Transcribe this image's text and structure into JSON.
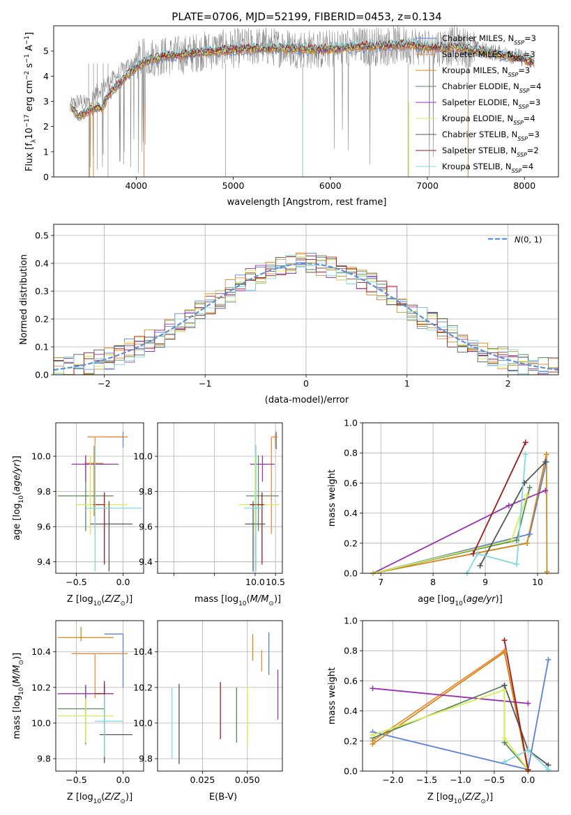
{
  "figure_title": "PLATE=0706, MJD=52199, FIBERID=0453, z=0.134",
  "colors": {
    "Chabrier MILES": "#5b7fdc",
    "Salpeter MILES": "#ef8a3a",
    "Kroupa MILES": "#d08a1a",
    "Chabrier ELODIE": "#5a8a5a",
    "Salpeter ELODIE": "#9a30b0",
    "Kroupa ELODIE": "#d8ee50",
    "Chabrier STELIB": "#555555",
    "Salpeter STELIB": "#a01818",
    "Kroupa STELIB": "#7ed8e0",
    "data": "#888888",
    "normal": "#5b8fd8",
    "grid": "#b0b0b0"
  },
  "chart_data": [
    {
      "id": "spectrum",
      "type": "line",
      "xlabel": "wavelength [Angstrom, rest frame]",
      "ylabel": "Flux [f_λ 10^-17 erg cm^-2 s^-1 A^-1]",
      "xlim": [
        3150,
        8350
      ],
      "ylim": [
        0,
        6
      ],
      "xticks": [
        4000,
        5000,
        6000,
        7000,
        8000
      ],
      "yticks": [
        0,
        1,
        2,
        3,
        4,
        5
      ],
      "grid": false,
      "legend_position": "right",
      "data_curve": {
        "x": [
          3320,
          3400,
          3500,
          3600,
          3700,
          3800,
          3900,
          4000,
          4100,
          4300,
          4500,
          4700,
          5000,
          5300,
          5600,
          5900,
          6200,
          6500,
          6800,
          7000,
          7300,
          7600,
          7900,
          8100
        ],
        "y": [
          2.8,
          3.0,
          2.9,
          3.4,
          3.7,
          4.0,
          4.4,
          4.6,
          4.75,
          4.8,
          4.85,
          5.0,
          5.1,
          5.2,
          5.1,
          5.05,
          5.15,
          5.2,
          5.25,
          5.15,
          5.2,
          5.0,
          4.8,
          4.6
        ]
      },
      "model_curve": {
        "x": [
          3320,
          3400,
          3500,
          3550,
          3600,
          3650,
          3700,
          3800,
          3900,
          4000,
          4100,
          4300,
          4500,
          4700,
          5000,
          5300,
          5600,
          5900,
          6200,
          6500,
          6800,
          7000,
          7300,
          7600,
          7900,
          8100
        ],
        "y": [
          2.8,
          2.4,
          2.6,
          2.7,
          2.8,
          2.7,
          3.2,
          3.6,
          4.0,
          4.35,
          4.6,
          4.8,
          4.85,
          4.95,
          5.05,
          5.1,
          5.1,
          5.05,
          5.15,
          5.2,
          5.25,
          5.15,
          5.15,
          4.95,
          4.75,
          4.55
        ]
      },
      "series": [
        {
          "name": "Chabrier MILES, N_SSP=3"
        },
        {
          "name": "Salpeter MILES, N_SSP=3"
        },
        {
          "name": "Kroupa MILES, N_SSP=3"
        },
        {
          "name": "Chabrier ELODIE, N_SSP=4"
        },
        {
          "name": "Salpeter ELODIE, N_SSP=3"
        },
        {
          "name": "Kroupa ELODIE, N_SSP=4"
        },
        {
          "name": "Chabrier STELIB, N_SSP=3"
        },
        {
          "name": "Salpeter STELIB, N_SSP=2"
        },
        {
          "name": "Kroupa STELIB, N_SSP=4"
        }
      ]
    },
    {
      "id": "residuals",
      "type": "step",
      "xlabel": "(data-model)/error",
      "ylabel": "Normed distribution",
      "xlim": [
        -2.5,
        2.5
      ],
      "ylim": [
        0,
        0.54
      ],
      "xticks": [
        -2,
        -1,
        0,
        1,
        2
      ],
      "yticks": [
        0.0,
        0.1,
        0.2,
        0.3,
        0.4,
        0.5
      ],
      "grid": true,
      "legend": {
        "label": "N(0,1)",
        "position": "top-right"
      },
      "normal_curve": {
        "mean": 0,
        "sigma": 1
      },
      "bin_width": 0.1,
      "bin_start": -2.5
    },
    {
      "id": "age_vs_Z",
      "type": "errorbar",
      "xlabel": "Z [log10(Z/Z_sun)]",
      "ylabel": "age [log10(age/yr)]",
      "xlim": [
        -0.72,
        0.22
      ],
      "ylim": [
        9.335,
        10.19
      ],
      "xticks": [
        -0.5,
        0.0
      ],
      "yticks": [
        9.4,
        9.6,
        9.8,
        10.0
      ],
      "grid": true,
      "points": [
        {
          "model": "Chabrier MILES",
          "x": 0.0,
          "xerr": [
            0.2,
            0.0
          ],
          "y": 10.11,
          "yerr": [
            0.06,
            0.03
          ]
        },
        {
          "model": "Salpeter MILES",
          "x": -0.3,
          "xerr": [
            0.08,
            0.35
          ],
          "y": 10.11,
          "yerr": [
            0.55,
            0.0
          ]
        },
        {
          "model": "Kroupa MILES",
          "x": -0.31,
          "xerr": [
            0.1,
            0.1
          ],
          "y": 9.96,
          "yerr": [
            0.3,
            0.1
          ]
        },
        {
          "model": "Chabrier ELODIE",
          "x": -0.4,
          "xerr": [
            0.3,
            0.3
          ],
          "y": 9.775,
          "yerr": [
            0.2,
            0.23
          ]
        },
        {
          "model": "Salpeter ELODIE",
          "x": -0.4,
          "xerr": [
            0.15,
            0.35
          ],
          "y": 9.955,
          "yerr": [
            0.1,
            0.05
          ]
        },
        {
          "model": "Kroupa ELODIE",
          "x": -0.35,
          "xerr": [
            0.15,
            0.4
          ],
          "y": 9.725,
          "yerr": [
            0.17,
            0.28
          ]
        },
        {
          "model": "Chabrier STELIB",
          "x": -0.15,
          "xerr": [
            0.2,
            0.25
          ],
          "y": 9.615,
          "yerr": [
            0.27,
            0.13
          ]
        },
        {
          "model": "Salpeter STELIB",
          "x": -0.2,
          "xerr": [
            0.12,
            0.0
          ],
          "y": 9.725,
          "yerr": [
            0.34,
            0.07
          ]
        },
        {
          "model": "Kroupa STELIB",
          "x": -0.3,
          "xerr": [
            0.1,
            0.5
          ],
          "y": 9.705,
          "yerr": [
            0.36,
            0.36
          ]
        }
      ]
    },
    {
      "id": "age_vs_mass",
      "type": "errorbar",
      "xlabel": "mass [log10(M/M_sun)]",
      "ylabel": "",
      "xlim": [
        7.6,
        10.67
      ],
      "ylim": [
        9.335,
        10.19
      ],
      "xticks": [
        8.0,
        9.0,
        10.0,
        10.5
      ],
      "tick_labels": [
        "",
        "",
        "10.0",
        "10.5"
      ],
      "yticks": [
        9.4,
        9.6,
        9.8,
        10.0
      ],
      "grid": true,
      "points": [
        {
          "model": "Chabrier MILES",
          "x": 10.52,
          "xerr": [
            0.03,
            0.0
          ],
          "y": 10.11,
          "yerr": [
            0.07,
            0.03
          ]
        },
        {
          "model": "Salpeter MILES",
          "x": 10.4,
          "xerr": [
            0.0,
            0.13
          ],
          "y": 10.11,
          "yerr": [
            0.55,
            0.0
          ]
        },
        {
          "model": "Kroupa MILES",
          "x": 10.5,
          "xerr": [
            0.0,
            0.05
          ],
          "y": 10.11,
          "yerr": [
            0.06,
            0.02
          ]
        },
        {
          "model": "Chabrier ELODIE",
          "x": 10.08,
          "xerr": [
            0.3,
            0.5
          ],
          "y": 9.775,
          "yerr": [
            0.2,
            0.23
          ]
        },
        {
          "model": "Salpeter ELODIE",
          "x": 10.18,
          "xerr": [
            0.3,
            0.3
          ],
          "y": 9.955,
          "yerr": [
            0.1,
            0.05
          ]
        },
        {
          "model": "Kroupa ELODIE",
          "x": 10.0,
          "xerr": [
            0.4,
            0.6
          ],
          "y": 9.725,
          "yerr": [
            0.17,
            0.28
          ]
        },
        {
          "model": "Chabrier STELIB",
          "x": 9.95,
          "xerr": [
            0.2,
            0.3
          ],
          "y": 9.615,
          "yerr": [
            0.27,
            0.13
          ]
        },
        {
          "model": "Salpeter STELIB",
          "x": 10.17,
          "xerr": [
            0.3,
            0.05
          ],
          "y": 9.725,
          "yerr": [
            0.34,
            0.07
          ]
        },
        {
          "model": "Kroupa STELIB",
          "x": 10.02,
          "xerr": [
            0.3,
            0.2
          ],
          "y": 9.705,
          "yerr": [
            0.36,
            0.36
          ]
        }
      ]
    },
    {
      "id": "mass_weight_vs_age",
      "type": "line",
      "xlabel": "age [log10(age/yr)]",
      "ylabel": "mass weight",
      "xlim": [
        6.65,
        10.4
      ],
      "ylim": [
        0,
        1.0
      ],
      "xticks": [
        7,
        8,
        9,
        10
      ],
      "yticks": [
        0.0,
        0.2,
        0.4,
        0.6,
        0.8,
        1.0
      ],
      "grid": true,
      "series": [
        {
          "model": "Chabrier MILES",
          "x": [
            6.85,
            9.85,
            10.17
          ],
          "y": [
            0.0,
            0.26,
            0.74
          ]
        },
        {
          "model": "Salpeter MILES",
          "x": [
            6.85,
            9.8,
            10.17
          ],
          "y": [
            0.0,
            0.2,
            0.79
          ]
        },
        {
          "model": "Kroupa MILES",
          "x": [
            6.85,
            9.8,
            10.17,
            10.18
          ],
          "y": [
            0.0,
            0.2,
            0.79,
            0.01
          ]
        },
        {
          "model": "Chabrier ELODIE",
          "x": [
            6.85,
            9.6,
            9.85
          ],
          "y": [
            0.0,
            0.22,
            0.57
          ]
        },
        {
          "model": "Salpeter ELODIE",
          "x": [
            6.85,
            9.45,
            10.15
          ],
          "y": [
            0.0,
            0.45,
            0.55
          ]
        },
        {
          "model": "Kroupa ELODIE",
          "x": [
            6.85,
            9.5,
            9.8
          ],
          "y": [
            0.0,
            0.22,
            0.52
          ]
        },
        {
          "model": "Chabrier STELIB",
          "x": [
            8.9,
            9.75,
            10.15
          ],
          "y": [
            0.05,
            0.6,
            0.74
          ]
        },
        {
          "model": "Salpeter STELIB",
          "x": [
            8.77,
            9.77
          ],
          "y": [
            0.13,
            0.87
          ]
        },
        {
          "model": "Kroupa STELIB",
          "x": [
            8.65,
            8.85,
            9.6,
            9.77
          ],
          "y": [
            0.0,
            0.13,
            0.06,
            0.79
          ]
        }
      ]
    },
    {
      "id": "mass_vs_Z",
      "type": "errorbar",
      "xlabel": "Z [log10(Z/Z_sun)]",
      "ylabel": "mass [log10(M/M_sun)]",
      "xlim": [
        -0.72,
        0.22
      ],
      "ylim": [
        9.73,
        10.575
      ],
      "xticks": [
        -0.5,
        0.0
      ],
      "yticks": [
        9.8,
        10.0,
        10.2,
        10.4
      ],
      "grid": true,
      "points": [
        {
          "model": "Chabrier MILES",
          "x": 0.0,
          "xerr": [
            0.2,
            0.0
          ],
          "y": 10.5,
          "yerr": [
            0.3,
            0.0
          ]
        },
        {
          "model": "Salpeter MILES",
          "x": -0.3,
          "xerr": [
            0.25,
            0.35
          ],
          "y": 10.39,
          "yerr": [
            0.25,
            0.0
          ]
        },
        {
          "model": "Kroupa MILES",
          "x": -0.45,
          "xerr": [
            0.25,
            0.35
          ],
          "y": 10.48,
          "yerr": [
            0.02,
            0.06
          ]
        },
        {
          "model": "Chabrier ELODIE",
          "x": -0.4,
          "xerr": [
            0.3,
            0.2
          ],
          "y": 10.08,
          "yerr": [
            0.2,
            0.13
          ]
        },
        {
          "model": "Salpeter ELODIE",
          "x": -0.4,
          "xerr": [
            0.3,
            0.3
          ],
          "y": 10.165,
          "yerr": [
            0.1,
            0.05
          ]
        },
        {
          "model": "Kroupa ELODIE",
          "x": -0.4,
          "xerr": [
            0.3,
            0.3
          ],
          "y": 10.04,
          "yerr": [
            0.15,
            0.1
          ]
        },
        {
          "model": "Chabrier STELIB",
          "x": -0.2,
          "xerr": [
            0.05,
            0.3
          ],
          "y": 9.935,
          "yerr": [
            0.16,
            0.28
          ]
        },
        {
          "model": "Salpeter STELIB",
          "x": -0.2,
          "xerr": [
            0.1,
            0.0
          ],
          "y": 10.165,
          "yerr": [
            0.1,
            0.07
          ]
        },
        {
          "model": "Kroupa STELIB",
          "x": -0.2,
          "xerr": [
            0.1,
            0.2
          ],
          "y": 10.01,
          "yerr": [
            0.2,
            0.15
          ]
        }
      ]
    },
    {
      "id": "mass_vs_ebv",
      "type": "errorbar",
      "xlabel": "E(B-V)",
      "ylabel": "",
      "xlim": [
        0.0,
        0.0695
      ],
      "ylim": [
        9.73,
        10.575
      ],
      "xticks": [
        0.025,
        0.05
      ],
      "tick_labels": [
        "0.025",
        "0.050"
      ],
      "yticks": [
        9.8,
        10.0,
        10.2,
        10.4
      ],
      "grid": true,
      "points": [
        {
          "model": "Chabrier MILES",
          "x": 0.062,
          "y": 10.39,
          "yerr": [
            0.12,
            0.12
          ]
        },
        {
          "model": "Salpeter MILES",
          "x": 0.058,
          "y": 10.39,
          "yerr": [
            0.1,
            0.02
          ]
        },
        {
          "model": "Kroupa MILES",
          "x": 0.053,
          "y": 10.45,
          "yerr": [
            0.1,
            0.05
          ]
        },
        {
          "model": "Chabrier ELODIE",
          "x": 0.044,
          "y": 10.07,
          "yerr": [
            0.18,
            0.13
          ]
        },
        {
          "model": "Salpeter ELODIE",
          "x": 0.067,
          "y": 10.16,
          "yerr": [
            0.14,
            0.14
          ]
        },
        {
          "model": "Kroupa ELODIE",
          "x": 0.05,
          "y": 10.04,
          "yerr": [
            0.17,
            0.17
          ]
        },
        {
          "model": "Chabrier STELIB",
          "x": 0.012,
          "y": 10.0,
          "yerr": [
            0.23,
            0.22
          ]
        },
        {
          "model": "Salpeter STELIB",
          "x": 0.035,
          "y": 10.07,
          "yerr": [
            0.16,
            0.16
          ]
        },
        {
          "model": "Kroupa STELIB",
          "x": 0.008,
          "y": 10.0,
          "yerr": [
            0.2,
            0.2
          ]
        }
      ]
    },
    {
      "id": "mass_weight_vs_Z",
      "type": "line",
      "xlabel": "Z [log10(Z/Z_sun)]",
      "ylabel": "mass weight",
      "xlim": [
        -2.45,
        0.45
      ],
      "ylim": [
        0,
        1.0
      ],
      "xticks": [
        -2.0,
        -1.5,
        -1.0,
        -0.5,
        0.0
      ],
      "yticks": [
        0.0,
        0.2,
        0.4,
        0.6,
        0.8,
        1.0
      ],
      "grid": true,
      "series": [
        {
          "model": "Chabrier MILES",
          "x": [
            0.3,
            0.0,
            -2.3
          ],
          "y": [
            0.74,
            0.01,
            0.26
          ]
        },
        {
          "model": "Salpeter MILES",
          "x": [
            0.0,
            -0.35,
            -2.3
          ],
          "y": [
            0.01,
            0.8,
            0.2
          ]
        },
        {
          "model": "Kroupa MILES",
          "x": [
            0.0,
            -0.35,
            -2.3
          ],
          "y": [
            0.0,
            0.79,
            0.18
          ]
        },
        {
          "model": "Chabrier ELODIE",
          "x": [
            -2.3,
            -0.35,
            -0.35,
            0.0
          ],
          "y": [
            0.22,
            0.57,
            0.19,
            0.01
          ]
        },
        {
          "model": "Salpeter ELODIE",
          "x": [
            -2.3,
            0.0
          ],
          "y": [
            0.55,
            0.45
          ]
        },
        {
          "model": "Kroupa ELODIE",
          "x": [
            -2.3,
            -0.35,
            -0.35,
            0.0
          ],
          "y": [
            0.24,
            0.54,
            0.22,
            0.01
          ]
        },
        {
          "model": "Chabrier STELIB",
          "x": [
            -0.35,
            0.0,
            0.3
          ],
          "y": [
            0.57,
            0.14,
            0.04
          ]
        },
        {
          "model": "Salpeter STELIB",
          "x": [
            -0.35,
            0.0
          ],
          "y": [
            0.87,
            0.01
          ]
        },
        {
          "model": "Kroupa STELIB",
          "x": [
            -0.35,
            0.0,
            0.3
          ],
          "y": [
            0.06,
            0.14,
            0.01
          ]
        }
      ]
    }
  ]
}
